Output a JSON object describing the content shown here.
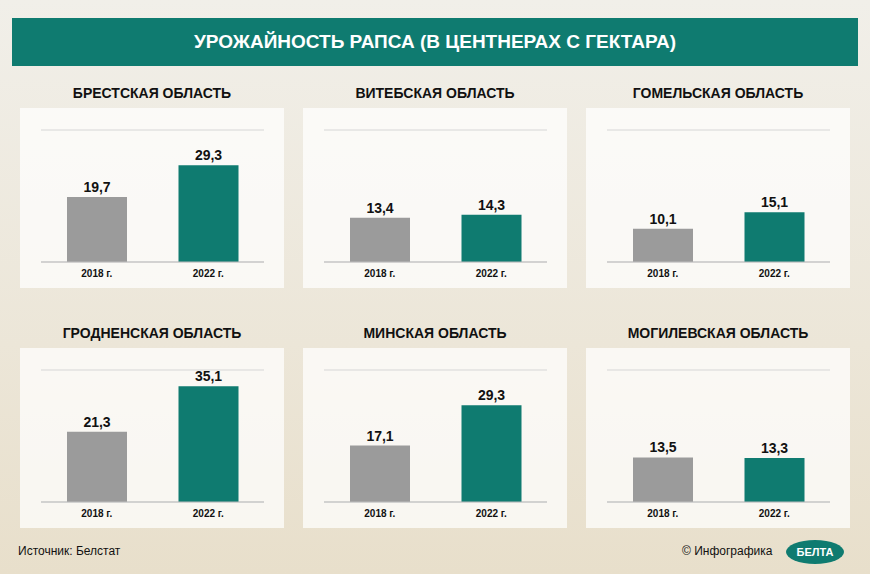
{
  "title": "УРОЖАЙНОСТЬ РАПСА (В ЦЕНТНЕРАХ С ГЕКТАРА)",
  "source": "Источник: Белстат",
  "credit": "© Инфографика",
  "logo": "БЕЛТА",
  "chart_data": [
    {
      "type": "bar",
      "title": "БРЕСТСКАЯ ОБЛАСТЬ",
      "categories": [
        "2018 г.",
        "2022 г."
      ],
      "values": [
        19.7,
        29.3
      ],
      "value_labels": [
        "19,7",
        "29,3"
      ],
      "colors": [
        "#9b9b9b",
        "#0f7b70"
      ],
      "ylim": [
        0,
        40
      ],
      "yticks": [
        0,
        5,
        10,
        15,
        20,
        25,
        30,
        35,
        40
      ],
      "grid": true,
      "data_labels": true,
      "tick_labels": "x"
    },
    {
      "type": "bar",
      "title": "ВИТЕБСКАЯ ОБЛАСТЬ",
      "categories": [
        "2018 г.",
        "2022 г."
      ],
      "values": [
        13.4,
        14.3
      ],
      "value_labels": [
        "13,4",
        "14,3"
      ],
      "colors": [
        "#9b9b9b",
        "#0f7b70"
      ],
      "ylim": [
        0,
        40
      ],
      "yticks": [
        0,
        5,
        10,
        15,
        20,
        25,
        30,
        35,
        40
      ],
      "grid": true,
      "data_labels": true,
      "tick_labels": "x"
    },
    {
      "type": "bar",
      "title": "ГОМЕЛЬСКАЯ ОБЛАСТЬ",
      "categories": [
        "2018 г.",
        "2022 г."
      ],
      "values": [
        10.1,
        15.1
      ],
      "value_labels": [
        "10,1",
        "15,1"
      ],
      "colors": [
        "#9b9b9b",
        "#0f7b70"
      ],
      "ylim": [
        0,
        40
      ],
      "yticks": [
        0,
        5,
        10,
        15,
        20,
        25,
        30,
        35,
        40
      ],
      "grid": true,
      "data_labels": true,
      "tick_labels": "x"
    },
    {
      "type": "bar",
      "title": "ГРОДНЕНСКАЯ ОБЛАСТЬ",
      "categories": [
        "2018 г.",
        "2022 г."
      ],
      "values": [
        21.3,
        35.1
      ],
      "value_labels": [
        "21,3",
        "35,1"
      ],
      "colors": [
        "#9b9b9b",
        "#0f7b70"
      ],
      "ylim": [
        0,
        40
      ],
      "yticks": [
        0,
        5,
        10,
        15,
        20,
        25,
        30,
        35,
        40
      ],
      "grid": true,
      "data_labels": true,
      "tick_labels": "x"
    },
    {
      "type": "bar",
      "title": "МИНСКАЯ ОБЛАСТЬ",
      "categories": [
        "2018 г.",
        "2022 г."
      ],
      "values": [
        17.1,
        29.3
      ],
      "value_labels": [
        "17,1",
        "29,3"
      ],
      "colors": [
        "#9b9b9b",
        "#0f7b70"
      ],
      "ylim": [
        0,
        40
      ],
      "yticks": [
        0,
        5,
        10,
        15,
        20,
        25,
        30,
        35,
        40
      ],
      "grid": true,
      "data_labels": true,
      "tick_labels": "x"
    },
    {
      "type": "bar",
      "title": "МОГИЛЕВСКАЯ ОБЛАСТЬ",
      "categories": [
        "2018 г.",
        "2022 г."
      ],
      "values": [
        13.5,
        13.3
      ],
      "value_labels": [
        "13,5",
        "13,3"
      ],
      "colors": [
        "#9b9b9b",
        "#0f7b70"
      ],
      "ylim": [
        0,
        40
      ],
      "yticks": [
        0,
        5,
        10,
        15,
        20,
        25,
        30,
        35,
        40
      ],
      "grid": true,
      "data_labels": true,
      "tick_labels": "x"
    }
  ]
}
